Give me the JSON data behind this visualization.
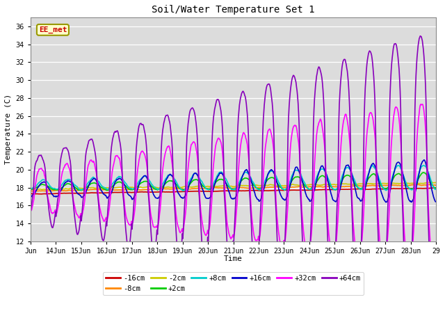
{
  "title": "Soil/Water Temperature Set 1",
  "xlabel": "Time",
  "ylabel": "Temperature (C)",
  "ylim": [
    12,
    37
  ],
  "yticks": [
    12,
    14,
    16,
    18,
    20,
    22,
    24,
    26,
    28,
    30,
    32,
    34,
    36
  ],
  "plot_bg_color": "#dcdcdc",
  "fig_bg_color": "#ffffff",
  "annotation_label": "EE_met",
  "annotation_text_color": "#cc0000",
  "annotation_bg_color": "#ffffcc",
  "annotation_border_color": "#999900",
  "n_days": 16,
  "pts_per_day": 48,
  "series": [
    {
      "label": "-16cm",
      "color": "#cc0000",
      "lw": 1.2
    },
    {
      "label": "-8cm",
      "color": "#ff8800",
      "lw": 1.2
    },
    {
      "label": "-2cm",
      "color": "#cccc00",
      "lw": 1.2
    },
    {
      "label": "+2cm",
      "color": "#00cc00",
      "lw": 1.2
    },
    {
      "label": "+8cm",
      "color": "#00cccc",
      "lw": 1.2
    },
    {
      "label": "+16cm",
      "color": "#0000cc",
      "lw": 1.2
    },
    {
      "label": "+32cm",
      "color": "#ff00ff",
      "lw": 1.2
    },
    {
      "label": "+64cm",
      "color": "#8800bb",
      "lw": 1.2
    }
  ]
}
